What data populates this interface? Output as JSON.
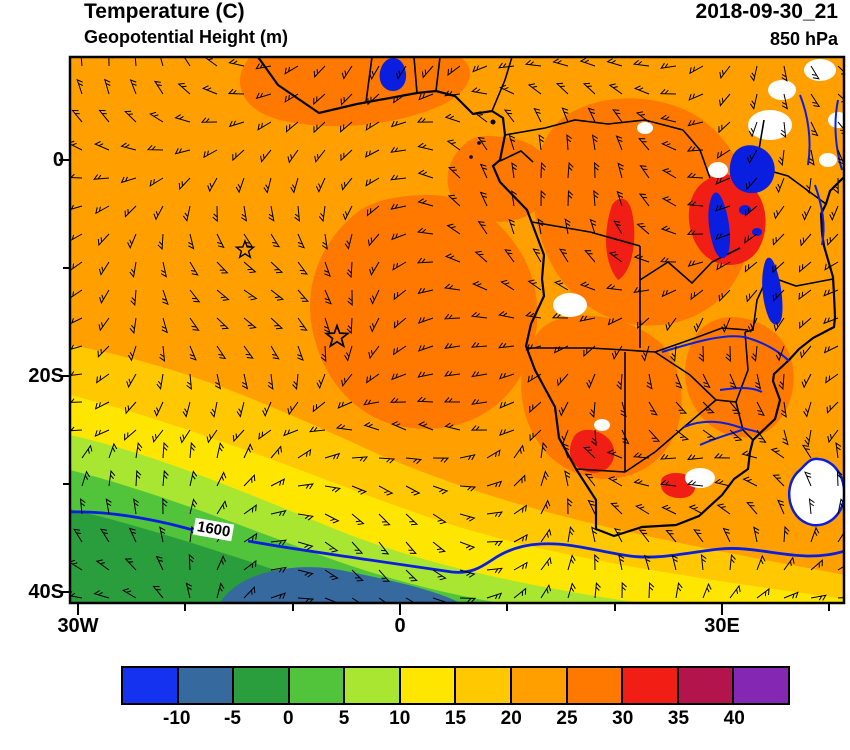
{
  "header": {
    "title": "Temperature (C)",
    "subtitle": "Geopotential Height (m)",
    "datetime": "2018-09-30_21",
    "level": "850 hPa"
  },
  "axes": {
    "y_ticks": [
      "0",
      "20S",
      "40S"
    ],
    "x_ticks": [
      "30W",
      "0",
      "30E"
    ]
  },
  "map": {
    "contour_label": "1600",
    "coast_color": "#000000",
    "water_color": "#0a1ee0"
  },
  "colorbar": {
    "tick_labels": [
      "-10",
      "-5",
      "0",
      "5",
      "10",
      "15",
      "20",
      "25",
      "30",
      "35",
      "40"
    ],
    "cell_colors": [
      "#1432f0",
      "#36699e",
      "#2a9d3c",
      "#52c43c",
      "#a8e632",
      "#ffe600",
      "#ffc800",
      "#ffa000",
      "#ff7800",
      "#f01e14",
      "#b4144c",
      "#8428b4"
    ]
  },
  "chart_data": {
    "type": "heatmap",
    "subtype": "filled-contour weather map with wind barbs",
    "title": "Temperature (C)",
    "overlay": "Geopotential Height (m), 850 hPa, valid 2018-09-30_21",
    "fill_variable": "temperature_c_850hPa",
    "contour_variable": "geopotential_height_m",
    "lon_range": [
      -30.7,
      41.4
    ],
    "lat_range": [
      -40.5,
      9.5
    ],
    "x_tick_lons": [
      -30,
      0,
      30
    ],
    "y_tick_lats": [
      0,
      -20,
      -40
    ],
    "fill_level_bounds_c": [
      -10,
      -5,
      0,
      5,
      10,
      15,
      20,
      25,
      30,
      35,
      40
    ],
    "palette": [
      "#1432f0",
      "#36699e",
      "#2a9d3c",
      "#52c43c",
      "#a8e632",
      "#ffe600",
      "#ffc800",
      "#ffa000",
      "#ff7800",
      "#f01e14",
      "#b4144c",
      "#8428b4"
    ],
    "grid_lons": [
      -30,
      -20,
      -10,
      0,
      10,
      20,
      30,
      40
    ],
    "grid_lats": [
      5,
      0,
      -5,
      -10,
      -15,
      -20,
      -25,
      -30,
      -35,
      -40
    ],
    "temperature_grid_c": [
      [
        22,
        22,
        22,
        23,
        23,
        23,
        24,
        24
      ],
      [
        22,
        22,
        23,
        23,
        24,
        24,
        25,
        25
      ],
      [
        22,
        22,
        23,
        25,
        26,
        26,
        30,
        28
      ],
      [
        21,
        22,
        23,
        26,
        28,
        27,
        31,
        29
      ],
      [
        20,
        21,
        22,
        27,
        28,
        27,
        28,
        27
      ],
      [
        18,
        19,
        21,
        24,
        26,
        27,
        26,
        26
      ],
      [
        14,
        16,
        18,
        21,
        24,
        28,
        24,
        24
      ],
      [
        10,
        12,
        15,
        17,
        20,
        23,
        24,
        23
      ],
      [
        4,
        6,
        8,
        10,
        13,
        17,
        20,
        21
      ],
      [
        -3,
        -6,
        -8,
        -4,
        2,
        8,
        13,
        16
      ]
    ],
    "height_contours_m": {
      "labeled_values": [
        1600
      ],
      "color": "#0a1ee0",
      "note": "1600 m contour crosses the domain near 35-38S; closed 1600 m contour SE of South Africa"
    },
    "wind": {
      "type": "barbs",
      "level": "850 hPa",
      "color": "#000000"
    },
    "station_markers": [
      {
        "symbol": "star",
        "lon": -14.4,
        "lat": -8.3
      },
      {
        "symbol": "star",
        "lon": -5.9,
        "lat": -16.4
      }
    ],
    "hot_features": [
      {
        "region": "Angola / central interior",
        "temp_c": "25-30"
      },
      {
        "region": "East Africa (Tanzania / Lake Victoria area)",
        "temp_c": "30-35"
      },
      {
        "region": "Namibia-Botswana and NE South Africa spots",
        "temp_c": "30-35"
      }
    ],
    "cold_features": [
      {
        "region": "far southwest ocean near 40S",
        "temp_c": "-10 to -5"
      }
    ],
    "white_areas_note": "white patches = terrain above the 850 hPa surface / missing data",
    "legend_position": "bottom colorbar"
  }
}
